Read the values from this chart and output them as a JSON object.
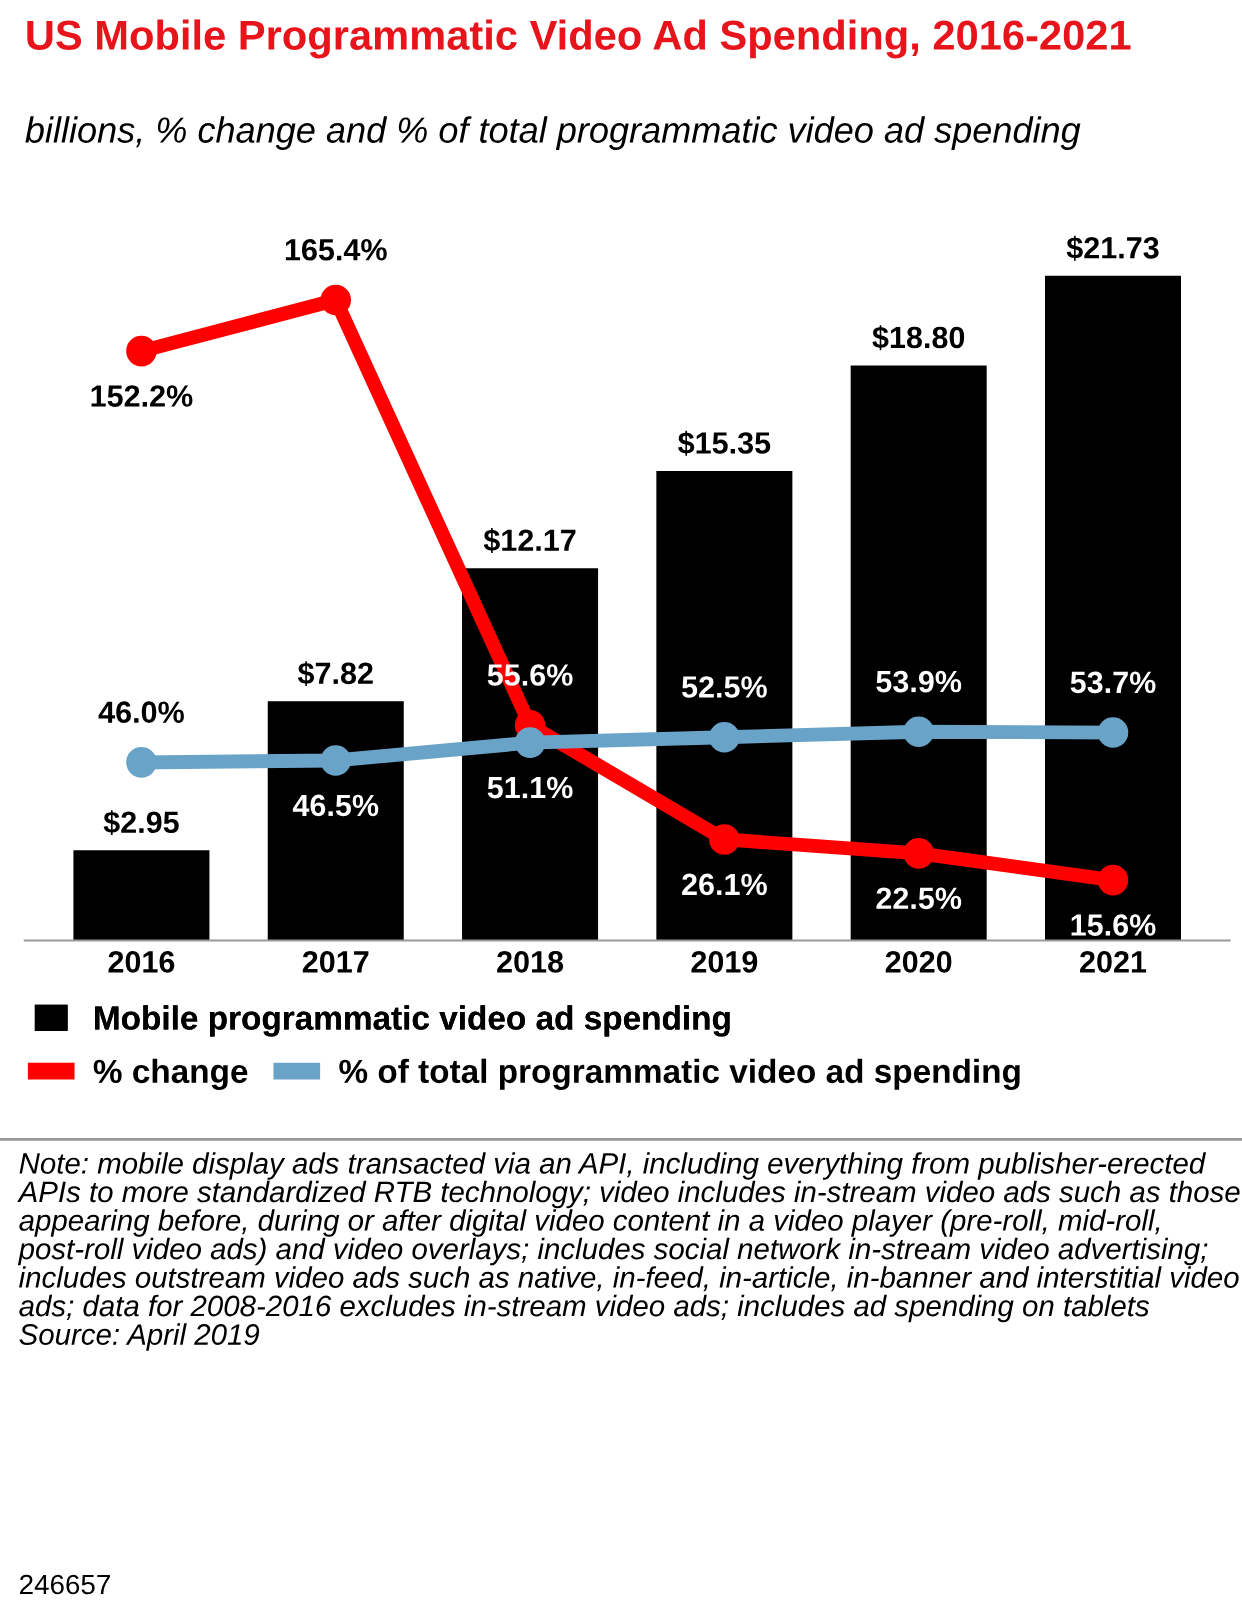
{
  "chart_data": {
    "type": "bar",
    "title": "US Mobile Programmatic Video Ad Spending, 2016-2021",
    "subtitle": "billions, % change and % of total programmatic video ad spending",
    "categories": [
      "2016",
      "2017",
      "2018",
      "2019",
      "2020",
      "2021"
    ],
    "series": [
      {
        "name": "Mobile programmatic video ad spending",
        "color": "#000000",
        "values": [
          2.95,
          7.82,
          12.17,
          15.35,
          18.8,
          21.73
        ],
        "value_labels": [
          "$2.95",
          "$7.82",
          "$12.17",
          "$15.35",
          "$18.80",
          "$21.73"
        ]
      },
      {
        "name": "% change",
        "type": "line",
        "axis": "y2",
        "color": "#ff0000",
        "values": [
          152.2,
          165.4,
          55.6,
          26.1,
          22.5,
          15.6
        ],
        "value_labels": [
          "152.2%",
          "165.4%",
          "55.6%",
          "26.1%",
          "22.5%",
          "15.6%"
        ]
      },
      {
        "name": "% of total programmatic video ad spending",
        "type": "line",
        "axis": "y2",
        "color": "#6aa3c8",
        "values": [
          46.0,
          46.5,
          51.1,
          52.5,
          53.9,
          53.7
        ],
        "value_labels": [
          "46.0%",
          "46.5%",
          "51.1%",
          "52.5%",
          "53.9%",
          "53.7%"
        ]
      }
    ],
    "marker": "circle",
    "legend": "bottom",
    "grid": false,
    "annotations": [
      "Note: mobile display ads transacted via an API, including everything from publisher-erected APIs to more standardized RTB technology; video includes in-stream video ads such as those appearing before, during or after digital video content in a video player (pre-roll, mid-roll, post-roll video ads) and video overlays; includes social network in-stream video advertising; includes outstream video ads such as native, in-feed, in-article, in-banner and interstitial video ads; data for 2008-2016 excludes in-stream video ads; includes ad spending on tablets\nSource: April 2019",
      "246657"
    ]
  }
}
